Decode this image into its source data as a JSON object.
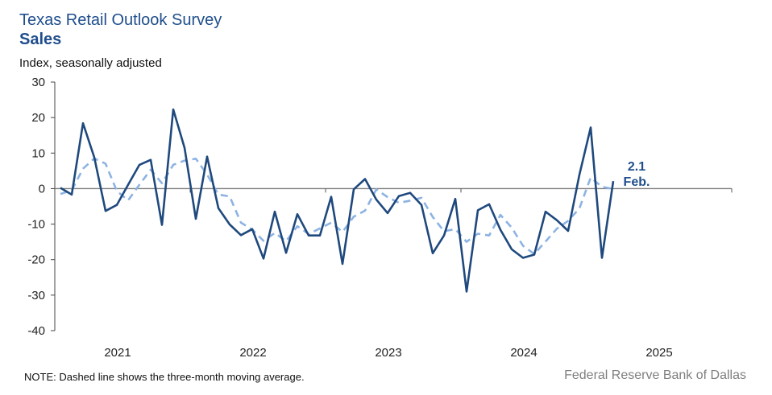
{
  "chart_data": {
    "type": "line",
    "title": "Texas Retail Outlook Survey",
    "subtitle": "Sales",
    "ylabel": "Index, seasonally adjusted",
    "xlabel": "",
    "ylim": [
      -40,
      30
    ],
    "yticks": [
      "30",
      "20",
      "10",
      "0",
      "-10",
      "-20",
      "-30",
      "-40"
    ],
    "xticks": [
      "2021",
      "2022",
      "2023",
      "2024",
      "2025"
    ],
    "x_start": "2021-01",
    "x_end": "2025-12",
    "grid": false,
    "legend": "none",
    "colors": {
      "index": "#1f497d",
      "moving_average": "#8db3e2",
      "title": "#1f4e8c"
    },
    "series": [
      {
        "style": "solid",
        "values": [
          0.2,
          -1.7,
          18.4,
          8.8,
          -6.3,
          -4.6,
          1.1,
          6.7,
          8.1,
          -10.2,
          22.3,
          11.5,
          -8.5,
          9.0,
          -5.5,
          -10.1,
          -13.1,
          -11.4,
          -19.7,
          -6.5,
          -18.1,
          -7.2,
          -13.2,
          -13.2,
          -2.3,
          -21.2,
          -0.2,
          2.7,
          -3.1,
          -6.9,
          -2.1,
          -1.2,
          -4.6,
          -18.2,
          -13.2,
          -2.9,
          -29.0,
          -6.1,
          -4.4,
          -11.6,
          -17.1,
          -19.5,
          -18.6,
          -6.5,
          -8.9,
          -11.9,
          3.9,
          17.2,
          -19.5,
          2.1
        ]
      },
      {
        "style": "dashed",
        "values": [
          -1.5,
          -0.5,
          5.6,
          8.5,
          7.0,
          -0.7,
          -3.3,
          1.1,
          5.3,
          1.5,
          6.7,
          7.9,
          8.4,
          4.0,
          -1.7,
          -2.2,
          -9.6,
          -11.5,
          -14.7,
          -12.5,
          -14.8,
          -10.6,
          -12.8,
          -11.2,
          -9.6,
          -12.2,
          -7.9,
          -6.2,
          -0.2,
          -2.4,
          -4.0,
          -3.4,
          -2.6,
          -8.0,
          -12.0,
          -11.4,
          -15.0,
          -12.7,
          -13.2,
          -7.4,
          -11.0,
          -16.1,
          -18.4,
          -14.9,
          -11.3,
          -9.1,
          -5.6,
          3.1,
          0.5,
          -0.1
        ]
      }
    ],
    "annotation": {
      "value": "2.1",
      "label": "Feb."
    }
  },
  "note": "NOTE: Dashed line shows the three-month  moving average.",
  "source": "Federal Reserve Bank of Dallas"
}
